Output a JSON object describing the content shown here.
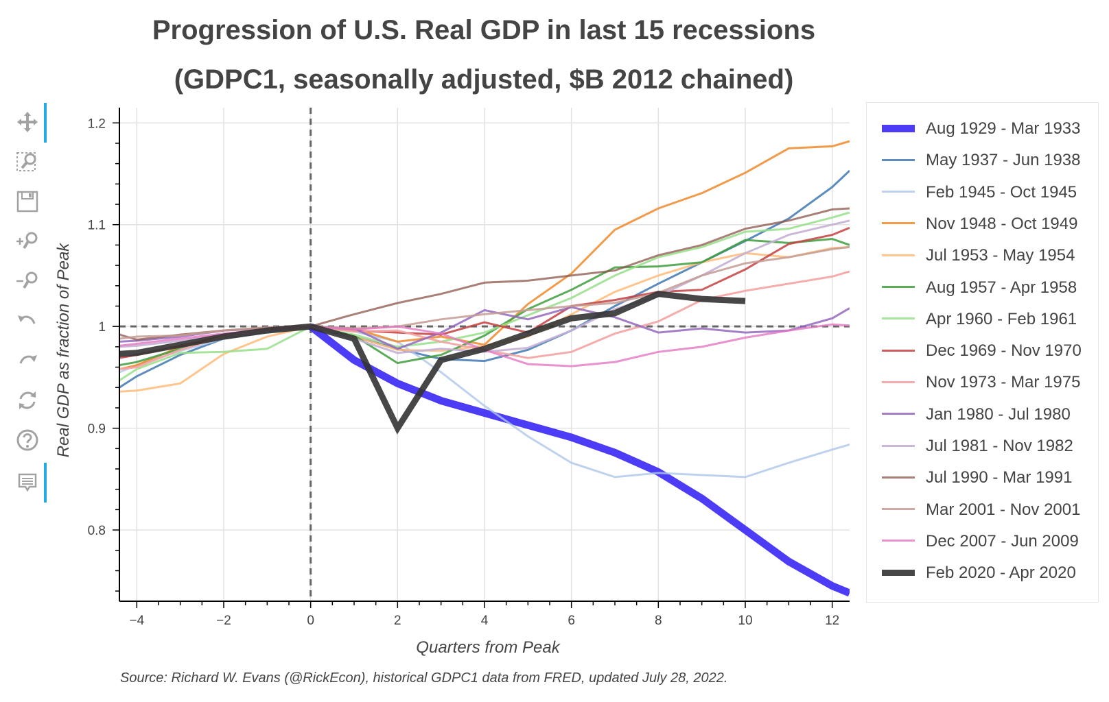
{
  "chart_data": {
    "type": "line",
    "title": "Progression of U.S. Real GDP in last 15 recessions",
    "subtitle": "(GDPC1, seasonally adjusted, $B 2012 chained)",
    "xlabel": "Quarters from Peak",
    "ylabel": "Real GDP as fraction of Peak",
    "xlim": [
      -4.4,
      12.4
    ],
    "ylim": [
      0.73,
      1.215
    ],
    "xticks": [
      -4,
      -2,
      0,
      2,
      4,
      6,
      8,
      10,
      12
    ],
    "xtick_labels": [
      "−4",
      "−2",
      "0",
      "2",
      "4",
      "6",
      "8",
      "10",
      "12"
    ],
    "yticks": [
      0.8,
      0.9,
      1,
      1.1,
      1.2
    ],
    "ytick_labels": [
      "0.8",
      "0.9",
      "1",
      "1.1",
      "1.2"
    ],
    "grid": true,
    "legend_position": "right",
    "reference_lines": [
      {
        "axis": "x",
        "value": 0,
        "style": "dashed"
      },
      {
        "axis": "y",
        "value": 1,
        "style": "dashed"
      }
    ],
    "series": [
      {
        "name": "Aug 1929 - Mar 1933",
        "color": "#3e2bf5",
        "alpha": 0.92,
        "width": 11,
        "x": [
          0,
          1,
          2,
          3,
          4,
          5,
          6,
          7,
          8,
          9,
          10,
          11,
          12,
          12.4
        ],
        "y": [
          1,
          0.967,
          0.944,
          0.927,
          0.915,
          0.903,
          0.891,
          0.876,
          0.857,
          0.831,
          0.8,
          0.769,
          0.745,
          0.738
        ]
      },
      {
        "name": "May 1937 - Jun 1938",
        "color": "#4a7fb5",
        "alpha": 0.9,
        "width": 3,
        "x": [
          -4.4,
          -4,
          -3,
          -2,
          -1,
          0,
          1,
          2,
          3,
          4,
          5,
          6,
          7,
          8,
          9,
          10,
          11,
          12,
          12.4
        ],
        "y": [
          0.94,
          0.951,
          0.972,
          0.988,
          0.995,
          1,
          0.99,
          0.978,
          0.968,
          0.966,
          0.977,
          0.996,
          1.02,
          1.042,
          1.063,
          1.084,
          1.106,
          1.137,
          1.153
        ]
      },
      {
        "name": "Feb 1945 - Oct 1945",
        "color": "#aec7e8",
        "alpha": 0.8,
        "width": 3,
        "x": [
          -4.4,
          -4,
          -3,
          -2,
          -1,
          0,
          1,
          2,
          3,
          4,
          5,
          6,
          7,
          8,
          9,
          10,
          11,
          12,
          12.4
        ],
        "y": [
          0.955,
          0.962,
          0.976,
          0.988,
          0.996,
          1,
          0.995,
          0.985,
          0.955,
          0.922,
          0.892,
          0.866,
          0.852,
          0.856,
          0.854,
          0.852,
          0.866,
          0.879,
          0.884
        ]
      },
      {
        "name": "Nov 1948 - Oct 1949",
        "color": "#ee8a2a",
        "alpha": 0.85,
        "width": 3,
        "x": [
          -4.4,
          -4,
          -3,
          -2,
          -1,
          0,
          1,
          2,
          3,
          4,
          5,
          6,
          7,
          8,
          9,
          10,
          11,
          12,
          12.4
        ],
        "y": [
          0.958,
          0.962,
          0.98,
          0.992,
          0.997,
          1,
          0.998,
          0.985,
          0.99,
          0.982,
          1.022,
          1.052,
          1.095,
          1.116,
          1.131,
          1.151,
          1.175,
          1.177,
          1.182
        ]
      },
      {
        "name": "Jul 1953 - May 1954",
        "color": "#ffbb78",
        "alpha": 0.85,
        "width": 3,
        "x": [
          -4.4,
          -4,
          -3,
          -2,
          -1,
          0,
          1,
          2,
          3,
          4,
          5,
          6,
          7,
          8,
          9,
          10,
          11,
          12,
          12.4
        ],
        "y": [
          0.936,
          0.937,
          0.944,
          0.973,
          0.99,
          1,
          0.99,
          0.977,
          0.976,
          0.981,
          0.99,
          1.012,
          1.034,
          1.05,
          1.063,
          1.072,
          1.068,
          1.077,
          1.078
        ]
      },
      {
        "name": "Aug 1957 - Apr 1958",
        "color": "#3d9e3d",
        "alpha": 0.85,
        "width": 3,
        "x": [
          -4.4,
          -4,
          -3,
          -2,
          -1,
          0,
          1,
          2,
          3,
          4,
          5,
          6,
          7,
          8,
          9,
          10,
          11,
          12,
          12.4
        ],
        "y": [
          0.962,
          0.965,
          0.978,
          0.99,
          0.998,
          1,
          0.991,
          0.964,
          0.972,
          0.991,
          1.017,
          1.036,
          1.058,
          1.059,
          1.063,
          1.085,
          1.082,
          1.086,
          1.08
        ]
      },
      {
        "name": "Apr 1960 - Feb 1961",
        "color": "#98df8a",
        "alpha": 0.85,
        "width": 3,
        "x": [
          -4.4,
          -4,
          -3,
          -2,
          -1,
          0,
          1,
          2,
          3,
          4,
          5,
          6,
          7,
          8,
          9,
          10,
          11,
          12,
          12.4
        ],
        "y": [
          0.947,
          0.958,
          0.974,
          0.975,
          0.978,
          1,
          0.992,
          0.98,
          0.985,
          0.994,
          1.011,
          1.028,
          1.05,
          1.068,
          1.078,
          1.093,
          1.096,
          1.107,
          1.112
        ]
      },
      {
        "name": "Dec 1969 - Nov 1970",
        "color": "#c44040",
        "alpha": 0.85,
        "width": 3,
        "x": [
          -4.4,
          -4,
          -3,
          -2,
          -1,
          0,
          1,
          2,
          3,
          4,
          5,
          6,
          7,
          8,
          9,
          10,
          11,
          12,
          12.4
        ],
        "y": [
          0.969,
          0.972,
          0.981,
          0.99,
          0.996,
          1,
          0.996,
          0.994,
          0.992,
          1.004,
          0.994,
          1.02,
          1.026,
          1.034,
          1.036,
          1.056,
          1.081,
          1.09,
          1.097
        ]
      },
      {
        "name": "Nov 1973 - Mar 1975",
        "color": "#f4a3a3",
        "alpha": 0.9,
        "width": 3,
        "x": [
          -4.4,
          -4,
          -3,
          -2,
          -1,
          0,
          1,
          2,
          3,
          4,
          5,
          6,
          7,
          8,
          9,
          10,
          11,
          12,
          12.4
        ],
        "y": [
          0.958,
          0.96,
          0.977,
          0.99,
          0.996,
          1,
          0.995,
          0.996,
          0.985,
          0.977,
          0.969,
          0.975,
          0.993,
          1.005,
          1.026,
          1.035,
          1.042,
          1.049,
          1.054
        ]
      },
      {
        "name": "Jan 1980 - Jul 1980",
        "color": "#9467bd",
        "alpha": 0.85,
        "width": 3,
        "x": [
          -4.4,
          -4,
          -3,
          -2,
          -1,
          0,
          1,
          2,
          3,
          4,
          5,
          6,
          7,
          8,
          9,
          10,
          11,
          12,
          12.4
        ],
        "y": [
          0.985,
          0.986,
          0.99,
          0.996,
          0.998,
          1,
          0.998,
          0.978,
          0.994,
          1.016,
          1.007,
          1.019,
          1.009,
          0.994,
          0.998,
          0.994,
          0.996,
          1.008,
          1.018
        ]
      },
      {
        "name": "Jul 1981 - Nov 1982",
        "color": "#c5b0d5",
        "alpha": 0.9,
        "width": 3,
        "x": [
          -4.4,
          -4,
          -3,
          -2,
          -1,
          0,
          1,
          2,
          3,
          4,
          5,
          6,
          7,
          8,
          9,
          10,
          11,
          12,
          12.4
        ],
        "y": [
          0.98,
          0.981,
          0.986,
          0.992,
          0.996,
          1,
          0.988,
          0.974,
          0.978,
          0.975,
          0.979,
          0.996,
          1.017,
          1.03,
          1.05,
          1.072,
          1.09,
          1.1,
          1.104
        ]
      },
      {
        "name": "Jul 1990 - Mar 1991",
        "color": "#8c564b",
        "alpha": 0.75,
        "width": 3,
        "x": [
          -4.4,
          -4,
          -3,
          -2,
          -1,
          0,
          1,
          2,
          3,
          4,
          5,
          6,
          7,
          8,
          9,
          10,
          11,
          12,
          12.4
        ],
        "y": [
          0.992,
          0.987,
          0.992,
          0.996,
          0.999,
          1,
          1.012,
          1.023,
          1.032,
          1.043,
          1.045,
          1.05,
          1.055,
          1.07,
          1.08,
          1.096,
          1.104,
          1.115,
          1.116
        ]
      },
      {
        "name": "Mar 2001 - Nov 2001",
        "color": "#c49c94",
        "alpha": 0.85,
        "width": 3,
        "x": [
          -4.4,
          -4,
          -3,
          -2,
          -1,
          0,
          1,
          2,
          3,
          4,
          5,
          6,
          7,
          8,
          9,
          10,
          11,
          12,
          12.4
        ],
        "y": [
          0.988,
          0.99,
          0.991,
          0.996,
          0.999,
          1,
          0.998,
          1.0,
          1.007,
          1.012,
          1.016,
          1.02,
          1.023,
          1.033,
          1.05,
          1.062,
          1.068,
          1.076,
          1.078
        ]
      },
      {
        "name": "Dec 2007 - Jun 2009",
        "color": "#e377c2",
        "alpha": 0.8,
        "width": 3,
        "x": [
          -4.4,
          -4,
          -3,
          -2,
          -1,
          0,
          1,
          2,
          3,
          4,
          5,
          6,
          7,
          8,
          9,
          10,
          11,
          12,
          12.4
        ],
        "y": [
          0.981,
          0.983,
          0.988,
          0.993,
          0.997,
          1,
          0.997,
          1.0,
          0.993,
          0.977,
          0.963,
          0.961,
          0.965,
          0.975,
          0.98,
          0.989,
          0.996,
          1.002,
          1.001
        ]
      },
      {
        "name": "Feb 2020 - Apr 2020",
        "color": "#333333",
        "alpha": 0.9,
        "width": 9,
        "x": [
          -4.4,
          -4,
          -3,
          -2,
          -1,
          0,
          1,
          2,
          3,
          4,
          5,
          6,
          7,
          8,
          9,
          10
        ],
        "y": [
          0.973,
          0.974,
          0.982,
          0.99,
          0.996,
          1,
          0.988,
          0.9,
          0.967,
          0.978,
          0.993,
          1.008,
          1.013,
          1.032,
          1.027,
          1.025
        ]
      }
    ]
  },
  "source": "Source: Richard W. Evans (@RickEcon), historical GDPC1 data from FRED, updated July 28, 2022."
}
